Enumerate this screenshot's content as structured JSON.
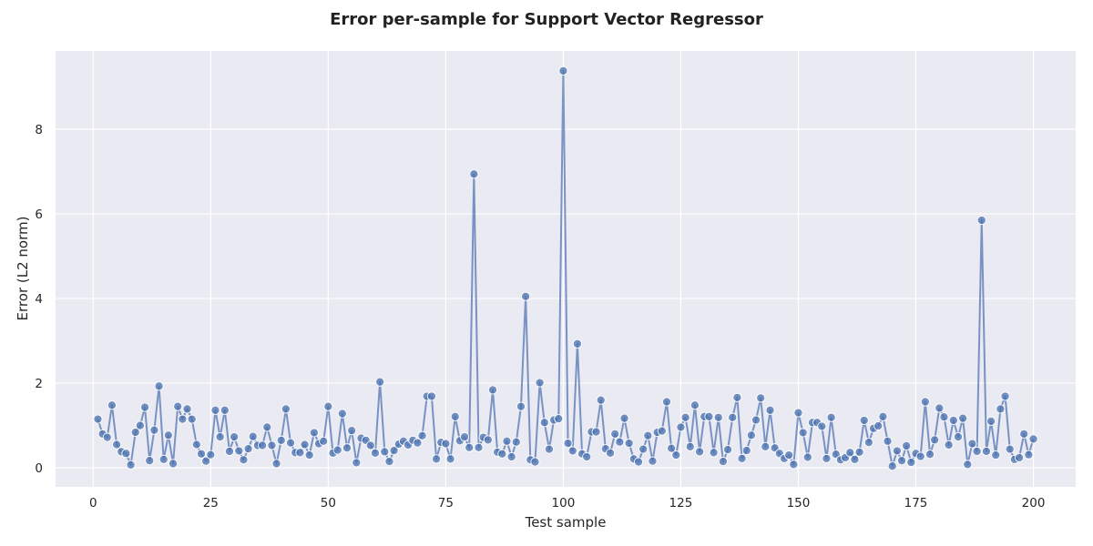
{
  "chart_data": {
    "type": "line",
    "title": "Error per-sample for Support Vector Regressor",
    "xlabel": "Test sample",
    "ylabel": "Error (L2 norm)",
    "xlim": [
      -8,
      209
    ],
    "ylim": [
      -0.45,
      9.85
    ],
    "x_ticks": [
      0,
      25,
      50,
      75,
      100,
      125,
      150,
      175,
      200
    ],
    "y_ticks": [
      0,
      2,
      4,
      6,
      8
    ],
    "grid": true,
    "markers": true,
    "colors": {
      "background": "#eaeaf2",
      "line": "#4c72b0",
      "grid": "#ffffff"
    },
    "series": [
      {
        "x": [
          1,
          2,
          3,
          4,
          5,
          6,
          7,
          8,
          9,
          10,
          11,
          12,
          13,
          14,
          15,
          16,
          17,
          18,
          19,
          20,
          21,
          22,
          23,
          24,
          25,
          26,
          27,
          28,
          29,
          30,
          31,
          32,
          33,
          34,
          35,
          36,
          37,
          38,
          39,
          40,
          41,
          42,
          43,
          44,
          45,
          46,
          47,
          48,
          49,
          50,
          51,
          52,
          53,
          54,
          55,
          56,
          57,
          58,
          59,
          60,
          61,
          62,
          63,
          64,
          65,
          66,
          67,
          68,
          69,
          70,
          71,
          72,
          73,
          74,
          75,
          76,
          77,
          78,
          79,
          80,
          81,
          82,
          83,
          84,
          85,
          86,
          87,
          88,
          89,
          90,
          91,
          92,
          93,
          94,
          95,
          96,
          97,
          98,
          99,
          100,
          101,
          102,
          103,
          104,
          105,
          106,
          107,
          108,
          109,
          110,
          111,
          112,
          113,
          114,
          115,
          116,
          117,
          118,
          119,
          120,
          121,
          122,
          123,
          124,
          125,
          126,
          127,
          128,
          129,
          130,
          131,
          132,
          133,
          134,
          135,
          136,
          137,
          138,
          139,
          140,
          141,
          142,
          143,
          144,
          145,
          146,
          147,
          148,
          149,
          150,
          151,
          152,
          153,
          154,
          155,
          156,
          157,
          158,
          159,
          160,
          161,
          162,
          163,
          164,
          165,
          166,
          167,
          168,
          169,
          170,
          171,
          172,
          173,
          174,
          175,
          176,
          177,
          178,
          179,
          180,
          181,
          182,
          183,
          184,
          185,
          186,
          187,
          188,
          189,
          190,
          191,
          192,
          193,
          194,
          195,
          196,
          197,
          198,
          199,
          200
        ],
        "values": [
          1.15,
          0.8,
          0.72,
          1.48,
          0.55,
          0.38,
          0.34,
          0.07,
          0.84,
          1.0,
          1.43,
          0.17,
          0.89,
          1.93,
          0.2,
          0.77,
          0.1,
          1.45,
          1.15,
          1.39,
          1.15,
          0.55,
          0.33,
          0.16,
          0.31,
          1.36,
          0.73,
          1.36,
          0.39,
          0.73,
          0.4,
          0.19,
          0.45,
          0.74,
          0.53,
          0.53,
          0.96,
          0.53,
          0.1,
          0.65,
          1.39,
          0.59,
          0.36,
          0.36,
          0.55,
          0.3,
          0.83,
          0.57,
          0.63,
          1.45,
          0.35,
          0.42,
          1.28,
          0.47,
          0.88,
          0.12,
          0.7,
          0.65,
          0.53,
          0.35,
          2.03,
          0.38,
          0.15,
          0.41,
          0.56,
          0.63,
          0.54,
          0.65,
          0.59,
          0.76,
          1.69,
          1.69,
          0.21,
          0.6,
          0.57,
          0.21,
          1.21,
          0.64,
          0.73,
          0.48,
          6.94,
          0.48,
          0.72,
          0.66,
          1.84,
          0.37,
          0.33,
          0.63,
          0.26,
          0.61,
          1.45,
          4.05,
          0.19,
          0.14,
          2.01,
          1.07,
          0.44,
          1.13,
          1.16,
          9.38,
          0.58,
          0.4,
          2.93,
          0.33,
          0.26,
          0.85,
          0.85,
          1.6,
          0.45,
          0.35,
          0.8,
          0.61,
          1.17,
          0.58,
          0.21,
          0.14,
          0.44,
          0.76,
          0.16,
          0.84,
          0.87,
          1.56,
          0.46,
          0.3,
          0.96,
          1.19,
          0.5,
          1.48,
          0.38,
          1.21,
          1.21,
          0.36,
          1.19,
          0.15,
          0.43,
          1.19,
          1.66,
          0.22,
          0.41,
          0.77,
          1.13,
          1.65,
          0.5,
          1.36,
          0.47,
          0.34,
          0.22,
          0.3,
          0.08,
          1.3,
          0.83,
          0.25,
          1.07,
          1.07,
          0.98,
          0.22,
          1.19,
          0.32,
          0.19,
          0.24,
          0.36,
          0.2,
          0.37,
          1.12,
          0.6,
          0.93,
          0.99,
          1.21,
          0.63,
          0.04,
          0.4,
          0.17,
          0.52,
          0.13,
          0.34,
          0.27,
          1.56,
          0.32,
          0.66,
          1.41,
          1.2,
          0.54,
          1.12,
          0.73,
          1.17,
          0.08,
          0.57,
          0.39,
          5.85,
          0.39,
          1.1,
          0.3,
          1.39,
          1.69,
          0.44,
          0.2,
          0.24,
          0.8,
          0.31,
          0.68
        ]
      }
    ]
  }
}
